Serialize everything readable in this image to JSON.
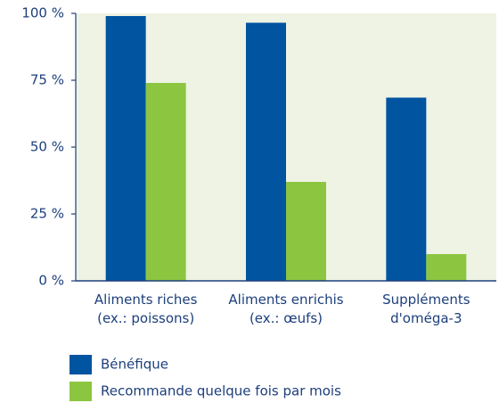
{
  "chart_data": {
    "type": "bar",
    "categories": [
      "Aliments riches\n(ex.: poissons)",
      "Aliments enrichis\n(ex.: œufs)",
      "Suppléments\nd'oméga-3"
    ],
    "series": [
      {
        "name": "Bénéfique",
        "color": "#0054a0",
        "values": [
          99,
          96.5,
          68.5
        ]
      },
      {
        "name": "Recommande quelque fois par mois",
        "color": "#8cc640",
        "values": [
          74,
          37,
          10
        ]
      }
    ],
    "ylim": [
      0,
      100
    ],
    "yticks": [
      {
        "value": 0,
        "label": "0 %"
      },
      {
        "value": 25,
        "label": "25 %"
      },
      {
        "value": 50,
        "label": "50 %"
      },
      {
        "value": 75,
        "label": "75 %"
      },
      {
        "value": 100,
        "label": "100 %"
      }
    ],
    "grid": false
  }
}
